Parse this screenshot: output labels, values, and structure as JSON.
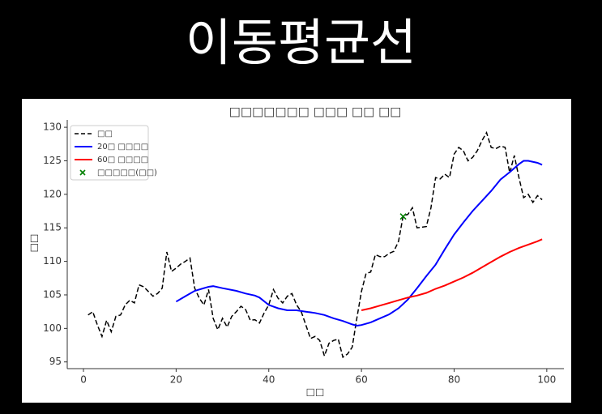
{
  "header": {
    "title": "이동평균선"
  },
  "chart_data": {
    "type": "line",
    "title": "□□□□□□□ □□□ □□ □□",
    "xlabel": "□□",
    "ylabel": "□□",
    "xlim": [
      -3.5,
      103.7
    ],
    "ylim": [
      94,
      131.1
    ],
    "xticks": [
      0,
      20,
      40,
      60,
      80,
      100
    ],
    "yticks": [
      95,
      100,
      105,
      110,
      115,
      120,
      125,
      130
    ],
    "legend": "upper left",
    "series": [
      {
        "name": "□□",
        "color": "#000000",
        "style": "dashed",
        "x": [
          1,
          2,
          3,
          4,
          5,
          6,
          7,
          8,
          9,
          10,
          11,
          12,
          13,
          14,
          15,
          16,
          17,
          18,
          19,
          20,
          21,
          22,
          23,
          24,
          25,
          26,
          27,
          28,
          29,
          30,
          31,
          32,
          33,
          34,
          35,
          36,
          37,
          38,
          39,
          40,
          41,
          42,
          43,
          44,
          45,
          46,
          47,
          48,
          49,
          50,
          51,
          52,
          53,
          54,
          55,
          56,
          57,
          58,
          59,
          60,
          61,
          62,
          63,
          64,
          65,
          66,
          67,
          68,
          69,
          70,
          71,
          72,
          73,
          74,
          75,
          76,
          77,
          78,
          79,
          80,
          81,
          82,
          83,
          84,
          85,
          86,
          87,
          88,
          89,
          90,
          91,
          92,
          93,
          94,
          95,
          96,
          97,
          98,
          99
        ],
        "values": [
          102,
          102.5,
          100.5,
          98.8,
          101.2,
          99.5,
          101.8,
          102,
          103.5,
          104.2,
          103.8,
          106.5,
          106.2,
          105.5,
          104.8,
          105.2,
          106,
          111.4,
          108.5,
          109,
          109.6,
          110,
          110.5,
          106,
          104.5,
          103.5,
          105.8,
          101.5,
          99.8,
          101.5,
          100.2,
          101.8,
          102.5,
          103.3,
          102.8,
          101.2,
          101.3,
          100.8,
          102.3,
          103.5,
          105.8,
          104.5,
          103.8,
          104.8,
          105.2,
          103.5,
          102.5,
          100.5,
          98.5,
          98.8,
          98.2,
          95.9,
          97.8,
          98.2,
          98.4,
          95.7,
          96.2,
          97.2,
          101.5,
          105.5,
          108.2,
          108.4,
          111,
          110.7,
          110.7,
          111.2,
          111.5,
          113,
          116.8,
          117,
          118,
          115,
          115.1,
          115.2,
          118,
          122.5,
          122.3,
          123,
          122.5,
          126,
          127,
          126.5,
          125,
          125.5,
          126.5,
          128,
          129.2,
          127,
          126.8,
          127.2,
          127,
          123.2,
          125.8,
          122.5,
          119.5,
          120,
          118.8,
          119.8,
          119.2
        ]
      },
      {
        "name": "20□ □□□□",
        "color": "#0000ff",
        "style": "solid",
        "x": [
          20,
          22,
          24,
          27,
          28,
          30,
          33,
          35,
          37,
          38,
          40,
          42,
          44,
          46,
          48,
          50,
          52,
          54,
          56,
          58,
          59,
          60,
          62,
          64,
          66,
          68,
          70,
          72,
          74,
          76,
          78,
          80,
          82,
          84,
          86,
          88,
          90,
          92,
          94,
          95,
          96,
          98,
          99
        ],
        "values": [
          104,
          104.8,
          105.6,
          106.2,
          106.3,
          106,
          105.6,
          105.2,
          104.9,
          104.6,
          103.5,
          103,
          102.7,
          102.7,
          102.5,
          102.3,
          102,
          101.5,
          101.1,
          100.6,
          100.4,
          100.5,
          100.9,
          101.5,
          102.1,
          103,
          104.3,
          106,
          107.8,
          109.5,
          111.8,
          114,
          115.8,
          117.5,
          119,
          120.5,
          122.2,
          123.3,
          124.5,
          125,
          125,
          124.7,
          124.4
        ]
      },
      {
        "name": "60□ □□□□",
        "color": "#ff0000",
        "style": "solid",
        "x": [
          60,
          62,
          64,
          66,
          68,
          70,
          72,
          74,
          76,
          78,
          80,
          82,
          84,
          86,
          88,
          90,
          92,
          94,
          96,
          98,
          99
        ],
        "values": [
          102.7,
          103,
          103.4,
          103.8,
          104.2,
          104.6,
          104.9,
          105.3,
          105.9,
          106.4,
          107,
          107.6,
          108.3,
          109.1,
          109.9,
          110.7,
          111.4,
          112,
          112.5,
          113,
          113.3
        ]
      },
      {
        "name": "□□□□□(□□)",
        "color": "#008000",
        "style": "marker",
        "x": [
          69
        ],
        "values": [
          116.7
        ]
      }
    ]
  }
}
